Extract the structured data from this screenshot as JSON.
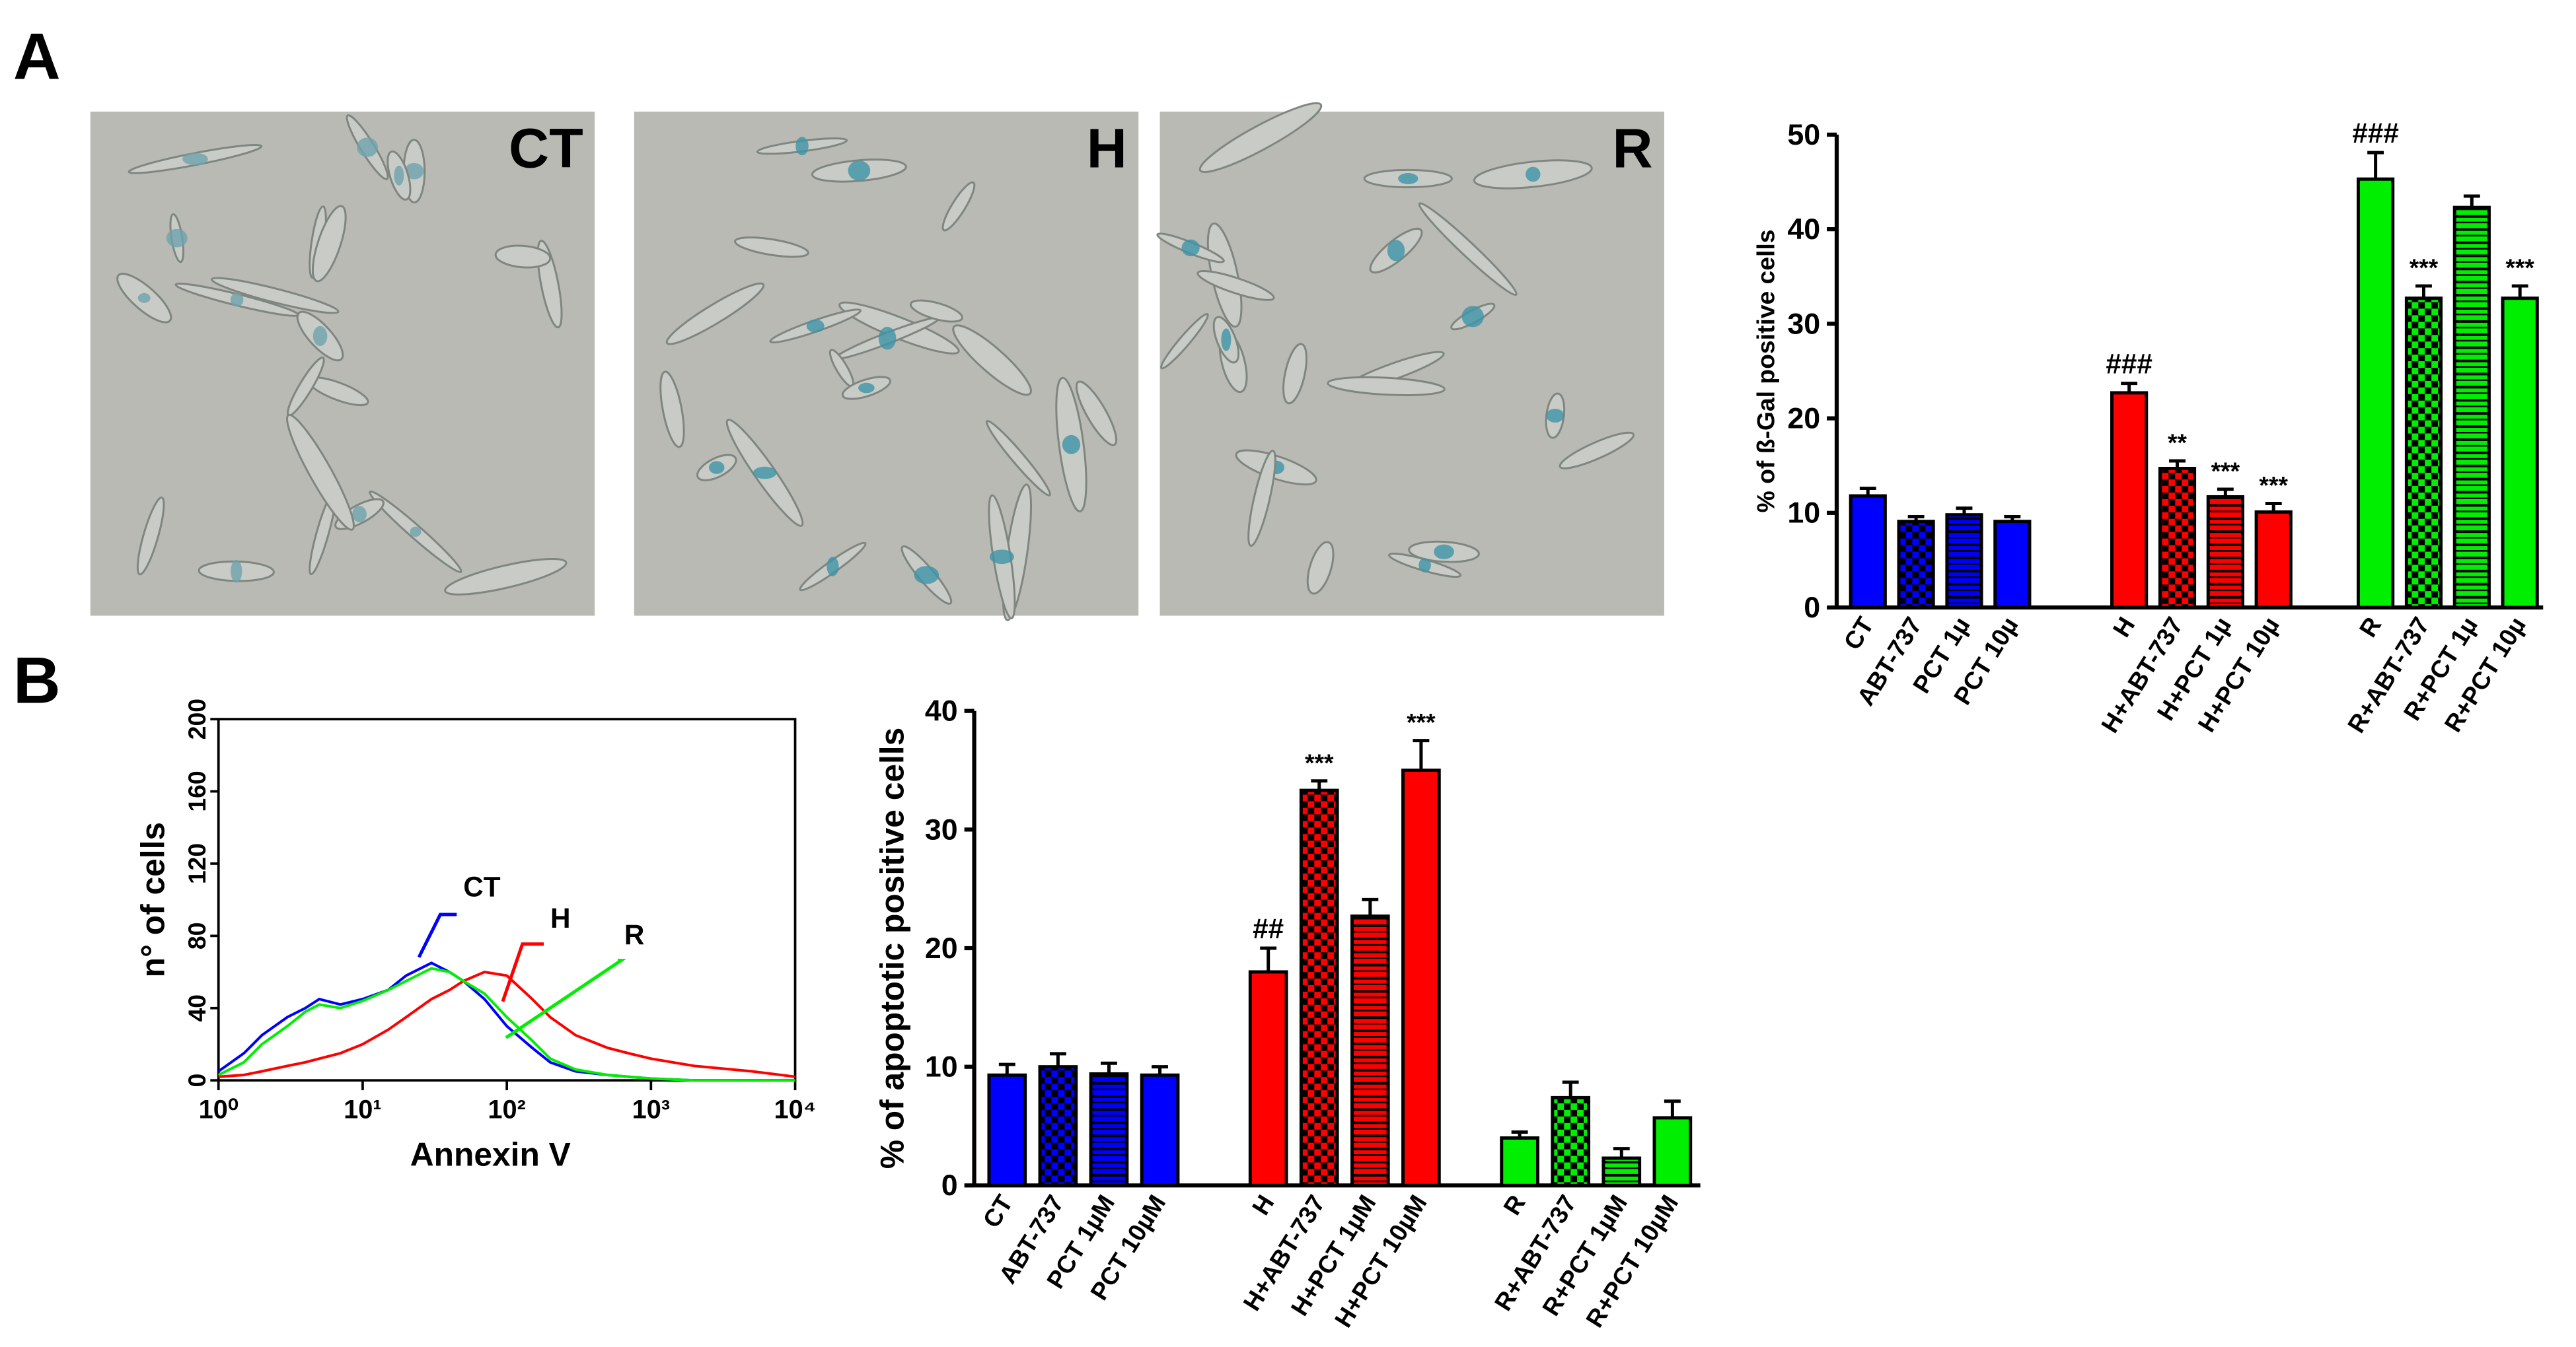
{
  "panel_labels": [
    "A",
    "B"
  ],
  "micrographs": [
    "CT",
    "H",
    "R"
  ],
  "chart_data": [
    {
      "type": "bar",
      "ylabel": "% of ß-Gal positive cells",
      "categories": [
        "CT",
        "ABT-737",
        "PCT 1µ",
        "PCT 10µ",
        "H",
        "H+ABT-737",
        "H+PCT 1µ",
        "H+PCT 10µ",
        "R",
        "R+ABT-737",
        "R+PCT 1µ",
        "R+PCT 10µ"
      ],
      "values": [
        11.8,
        9.1,
        9.8,
        9.1,
        22.7,
        14.7,
        11.7,
        10.1,
        45.3,
        32.7,
        42.3,
        32.7
      ],
      "errors": [
        0.8,
        0.5,
        0.7,
        0.5,
        1.0,
        0.8,
        0.8,
        0.9,
        2.8,
        1.3,
        1.2,
        1.3
      ],
      "annotations": [
        null,
        null,
        null,
        null,
        "###",
        "**",
        "***",
        "***",
        "###",
        "***",
        null,
        "***"
      ],
      "colors": [
        "#0000ff",
        "#0000ff",
        "#0000ff",
        "#0000ff",
        "#ff0000",
        "#ff0000",
        "#ff0000",
        "#ff0000",
        "#00ee00",
        "#00ee00",
        "#00ee00",
        "#00ee00"
      ],
      "patterns": [
        "solid",
        "checker",
        "hstripe",
        "solid",
        "solid",
        "checker",
        "hstripe",
        "solid",
        "solid",
        "checker",
        "hstripe",
        "solid"
      ],
      "ylim": [
        0,
        50
      ],
      "yticks": [
        0,
        10,
        20,
        30,
        40,
        50
      ]
    },
    {
      "type": "line",
      "xlabel": "Annexin V",
      "ylabel": "n° of cells",
      "log_x": true,
      "x": [
        1,
        1.5,
        2,
        3,
        4,
        5,
        7,
        10,
        15,
        20,
        30,
        40,
        50,
        70,
        100,
        150,
        200,
        300,
        500,
        700,
        1000,
        2000,
        5000,
        10000
      ],
      "series": [
        {
          "name": "CT",
          "color": "#0000ff",
          "values": [
            5,
            15,
            25,
            35,
            40,
            45,
            42,
            45,
            50,
            58,
            65,
            60,
            55,
            45,
            30,
            18,
            10,
            5,
            3,
            2,
            1,
            0,
            0,
            0
          ]
        },
        {
          "name": "H",
          "color": "#ff0000",
          "values": [
            2,
            3,
            5,
            8,
            10,
            12,
            15,
            20,
            28,
            35,
            45,
            50,
            55,
            60,
            58,
            45,
            35,
            25,
            18,
            15,
            12,
            8,
            5,
            2
          ]
        },
        {
          "name": "R",
          "color": "#00ee00",
          "values": [
            3,
            10,
            20,
            30,
            38,
            42,
            40,
            44,
            50,
            55,
            62,
            60,
            55,
            48,
            35,
            22,
            12,
            6,
            3,
            2,
            1,
            0,
            0,
            0
          ]
        }
      ],
      "xlim": [
        1,
        10000
      ],
      "xticks": [
        {
          "value": 1,
          "label": "10⁰"
        },
        {
          "value": 10,
          "label": "10¹"
        },
        {
          "value": 100,
          "label": "10²"
        },
        {
          "value": 1000,
          "label": "10³"
        },
        {
          "value": 10000,
          "label": "10⁴"
        }
      ],
      "ylim": [
        0,
        200
      ],
      "yticks": [
        0,
        40,
        80,
        120,
        160,
        200
      ]
    },
    {
      "type": "bar",
      "ylabel": "% of apoptotic positive cells",
      "categories": [
        "CT",
        "ABT-737",
        "PCT 1µM",
        "PCT 10µM",
        "H",
        "H+ABT-737",
        "H+PCT 1µM",
        "H+PCT 10µM",
        "R",
        "R+ABT-737",
        "R+PCT 1µM",
        "R+PCT 10µM"
      ],
      "values": [
        9.3,
        10.0,
        9.4,
        9.3,
        18.0,
        33.3,
        22.7,
        35.0,
        4.0,
        7.4,
        2.3,
        5.7
      ],
      "errors": [
        0.9,
        1.1,
        0.9,
        0.7,
        2.0,
        0.8,
        1.4,
        2.5,
        0.5,
        1.3,
        0.8,
        1.4
      ],
      "annotations": [
        null,
        null,
        null,
        null,
        "##",
        "***",
        null,
        "***",
        null,
        null,
        null,
        null
      ],
      "colors": [
        "#0000ff",
        "#0000ff",
        "#0000ff",
        "#0000ff",
        "#ff0000",
        "#ff0000",
        "#ff0000",
        "#ff0000",
        "#00ee00",
        "#00ee00",
        "#00ee00",
        "#00ee00"
      ],
      "patterns": [
        "solid",
        "checker",
        "hstripe",
        "solid",
        "solid",
        "checker",
        "hstripe",
        "solid",
        "solid",
        "checker",
        "hstripe",
        "solid"
      ],
      "ylim": [
        0,
        40
      ],
      "yticks": [
        0,
        10,
        20,
        30,
        40
      ]
    }
  ]
}
